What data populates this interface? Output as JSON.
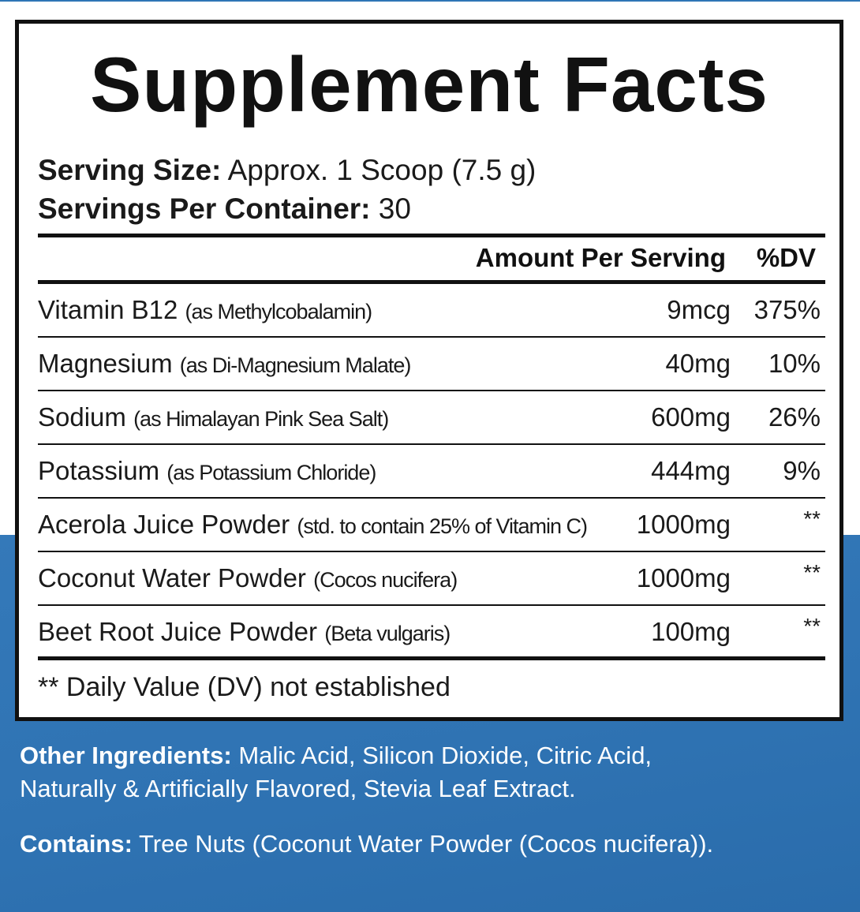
{
  "title": "Supplement Facts",
  "serving": {
    "size_label": "Serving Size:",
    "size_value": " Approx. 1 Scoop (7.5 g)",
    "per_container_label": "Servings Per Container:",
    "per_container_value": " 30"
  },
  "table": {
    "amount_header": "Amount Per Serving",
    "dv_header": "%DV",
    "rows": [
      {
        "name": "Vitamin B12 ",
        "source": "(as Methylcobalamin)",
        "amount": "9mcg",
        "dv": "375%"
      },
      {
        "name": "Magnesium ",
        "source": "(as Di-Magnesium Malate)",
        "amount": "40mg",
        "dv": "10%"
      },
      {
        "name": "Sodium ",
        "source": "(as Himalayan Pink Sea Salt)",
        "amount": "600mg",
        "dv": "26%"
      },
      {
        "name": "Potassium ",
        "source": "(as Potassium Chloride)",
        "amount": "444mg",
        "dv": "9%"
      },
      {
        "name": "Acerola Juice Powder ",
        "source": "(std. to contain 25% of Vitamin C)",
        "amount": "1000mg",
        "dv": "**"
      },
      {
        "name": "Coconut Water Powder ",
        "source": "(Cocos nucifera)",
        "amount": "1000mg",
        "dv": "**"
      },
      {
        "name": "Beet Root Juice Powder ",
        "source": "(Beta vulgaris)",
        "amount": "100mg",
        "dv": "**"
      }
    ],
    "footnote": "** Daily Value (DV) not established"
  },
  "other_ingredients": {
    "label": "Other Ingredients:",
    "text": " Malic Acid, Silicon Dioxide, Citric Acid, Naturally & Artificially Flavored, Stevia Leaf Extract."
  },
  "contains": {
    "label": "Contains:",
    "text": " Tree Nuts (Coconut Water Powder (Cocos nucifera))."
  },
  "colors": {
    "band_blue": "#2f73b3",
    "ink": "#111111"
  }
}
